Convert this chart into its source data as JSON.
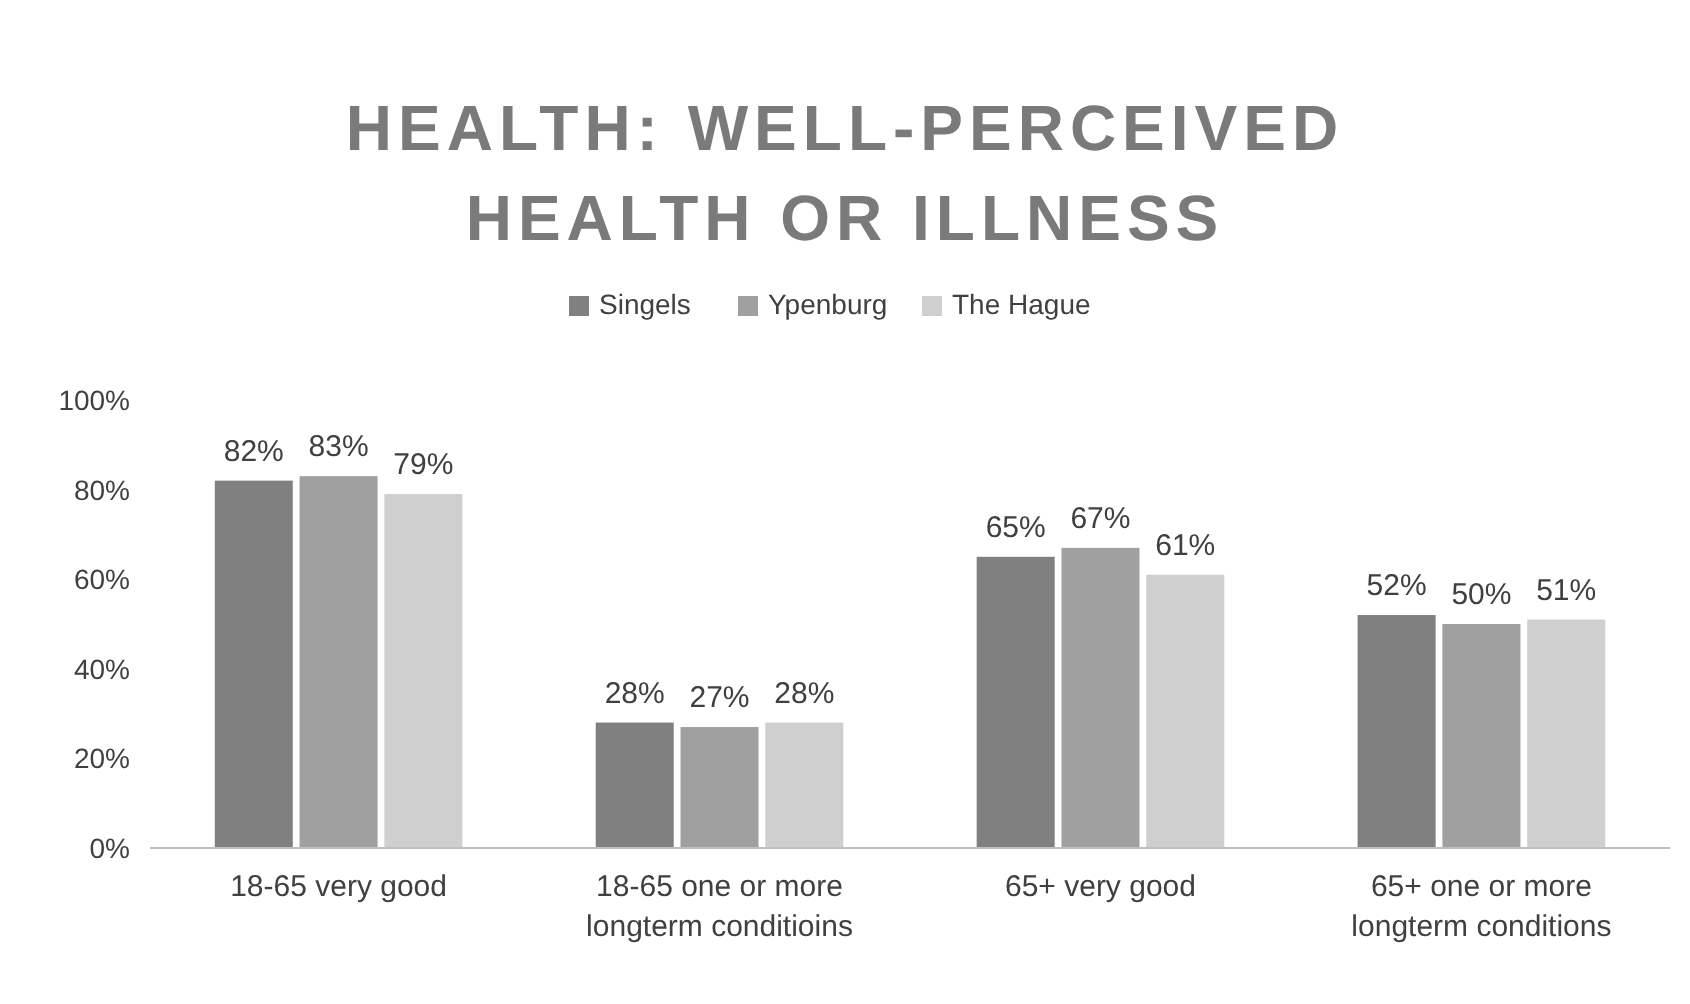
{
  "chart_data": {
    "type": "bar",
    "title": "HEALTH: WELL-PERCEIVED HEALTH OR ILLNESS",
    "categories": [
      "18-65 very good",
      "18-65 one or more longterm conditioins",
      "65+ very good",
      "65+ one or more longterm conditions"
    ],
    "series": [
      {
        "name": "Singels",
        "color": "#808080",
        "values": [
          82,
          28,
          65,
          52
        ],
        "value_labels": [
          "82%",
          "28%",
          "65%",
          "52%"
        ]
      },
      {
        "name": "Ypenburg",
        "color": "#a0a0a0",
        "values": [
          83,
          27,
          67,
          50
        ],
        "value_labels": [
          "83%",
          "27%",
          "67%",
          "50%"
        ]
      },
      {
        "name": "The Hague",
        "color": "#cfcfcf",
        "values": [
          79,
          28,
          61,
          51
        ],
        "value_labels": [
          "79%",
          "28%",
          "61%",
          "51%"
        ]
      }
    ],
    "ylim": [
      0,
      100
    ],
    "yticks": [
      {
        "value": 0,
        "label": "0%"
      },
      {
        "value": 20,
        "label": "20%"
      },
      {
        "value": 40,
        "label": "40%"
      },
      {
        "value": 60,
        "label": "60%"
      },
      {
        "value": 80,
        "label": "80%"
      },
      {
        "value": 100,
        "label": "100%"
      }
    ],
    "legend": "top",
    "grid": false
  }
}
